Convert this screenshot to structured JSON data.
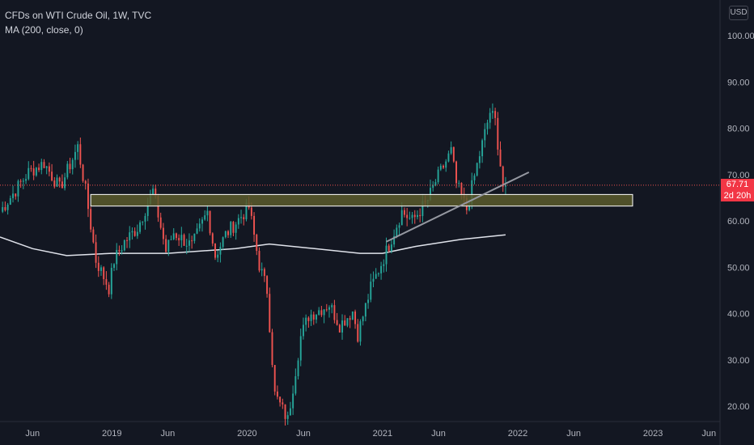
{
  "header": {
    "title": "CFDs on WTI Crude Oil, 1W, TVC",
    "indicator": "MA (200, close, 0)"
  },
  "currency": "USD",
  "last_price_tag": {
    "price": "67.71",
    "countdown": "2d 20h"
  },
  "colors": {
    "background": "#131722",
    "up": "#26a69a",
    "down": "#ef5350",
    "ma": "#e0e3eb",
    "zone_fill": "#5b5a2c",
    "zone_border": "#ffffff",
    "trendline": "#9598a1",
    "price_line": "#ef5350",
    "price_tag": "#f23645"
  },
  "chart_data": {
    "type": "candlestick",
    "title": "CFDs on WTI Crude Oil, 1W, TVC",
    "y_axis": {
      "ticks": [
        "100.00",
        "90.00",
        "80.00",
        "70.00",
        "60.00",
        "50.00",
        "40.00",
        "30.00",
        "20.00"
      ],
      "range": [
        16,
        104
      ]
    },
    "x_axis": {
      "ticks": [
        "Jun",
        "2019",
        "Jun",
        "2020",
        "Jun",
        "2021",
        "Jun",
        "2022",
        "Jun",
        "2023",
        "Jun"
      ],
      "range": [
        "2018-03-05",
        "2023-07-01"
      ]
    },
    "grid": false,
    "last_price": 67.71,
    "candles_weekly_close_path": [
      [
        "2018-03-05",
        62.0
      ],
      [
        "2018-05-21",
        70.5
      ],
      [
        "2018-07-02",
        72.5
      ],
      [
        "2018-08-13",
        67.0
      ],
      [
        "2018-10-01",
        76.0
      ],
      [
        "2018-10-22",
        66.5
      ],
      [
        "2018-11-19",
        51.5
      ],
      [
        "2018-12-24",
        45.5
      ],
      [
        "2019-01-07",
        51.5
      ],
      [
        "2019-02-04",
        55.5
      ],
      [
        "2019-03-11",
        58.5
      ],
      [
        "2019-04-22",
        66.5
      ],
      [
        "2019-05-27",
        53.5
      ],
      [
        "2019-06-17",
        57.5
      ],
      [
        "2019-08-05",
        54.5
      ],
      [
        "2019-09-16",
        62.0
      ],
      [
        "2019-10-07",
        52.5
      ],
      [
        "2019-11-04",
        57.0
      ],
      [
        "2019-12-16",
        61.0
      ],
      [
        "2020-01-06",
        63.0
      ],
      [
        "2020-02-03",
        50.5
      ],
      [
        "2020-02-24",
        45.0
      ],
      [
        "2020-03-16",
        22.5
      ],
      [
        "2020-04-20",
        17.0
      ],
      [
        "2020-05-25",
        35.0
      ],
      [
        "2020-06-15",
        39.5
      ],
      [
        "2020-08-10",
        42.0
      ],
      [
        "2020-09-07",
        37.5
      ],
      [
        "2020-10-12",
        40.5
      ],
      [
        "2020-10-26",
        35.5
      ],
      [
        "2020-11-30",
        45.5
      ],
      [
        "2021-01-04",
        52.0
      ],
      [
        "2021-02-22",
        62.0
      ],
      [
        "2021-03-22",
        60.0
      ],
      [
        "2021-05-03",
        64.5
      ],
      [
        "2021-05-24",
        68.5
      ],
      [
        "2021-07-05",
        75.0
      ],
      [
        "2021-07-19",
        68.0
      ],
      [
        "2021-08-16",
        62.5
      ],
      [
        "2021-09-13",
        72.0
      ],
      [
        "2021-10-18",
        83.5
      ],
      [
        "2021-11-01",
        81.5
      ],
      [
        "2021-11-22",
        67.5
      ],
      [
        "2021-11-29",
        67.71
      ]
    ],
    "ma_200_path": [
      [
        "2018-03-05",
        56.5
      ],
      [
        "2018-06-01",
        54.0
      ],
      [
        "2018-09-01",
        52.5
      ],
      [
        "2019-01-01",
        53.0
      ],
      [
        "2019-06-01",
        53.0
      ],
      [
        "2019-12-01",
        54.0
      ],
      [
        "2020-03-01",
        55.0
      ],
      [
        "2020-07-01",
        54.0
      ],
      [
        "2020-11-01",
        53.0
      ],
      [
        "2021-01-01",
        53.0
      ],
      [
        "2021-04-01",
        54.5
      ],
      [
        "2021-08-01",
        56.0
      ],
      [
        "2021-11-29",
        57.0
      ]
    ],
    "drawings": {
      "support_zone": {
        "price_from": 63.2,
        "price_to": 65.7,
        "date_from": "2018-11-05",
        "date_to": "2022-11-07"
      },
      "trendline": {
        "from": [
          "2021-01-11",
          55.5
        ],
        "to": [
          "2022-01-31",
          70.5
        ]
      }
    }
  }
}
